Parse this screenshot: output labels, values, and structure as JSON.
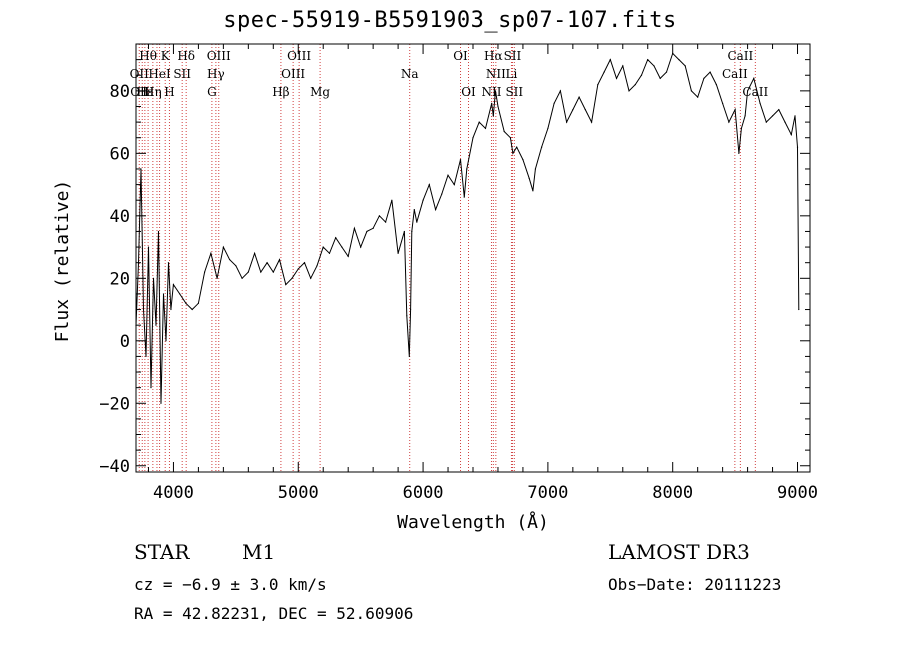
{
  "chart_data": {
    "type": "line",
    "title": "spec-55919-B5591903_sp07-107.fits",
    "xlabel": "Wavelength (Å)",
    "ylabel": "Flux (relative)",
    "xlim": [
      3700,
      9100
    ],
    "ylim": [
      -42,
      95
    ],
    "x_ticks": [
      4000,
      5000,
      6000,
      7000,
      8000,
      9000
    ],
    "y_ticks": [
      -40,
      -20,
      0,
      20,
      40,
      60,
      80
    ],
    "grid": false,
    "series": [
      {
        "x": [
          3700,
          3720,
          3740,
          3760,
          3780,
          3800,
          3820,
          3840,
          3860,
          3880,
          3900,
          3920,
          3940,
          3960,
          3980,
          4000,
          4050,
          4100,
          4150,
          4200,
          4250,
          4300,
          4350,
          4400,
          4450,
          4500,
          4550,
          4600,
          4650,
          4700,
          4750,
          4800,
          4850,
          4900,
          4950,
          5000,
          5050,
          5100,
          5150,
          5200,
          5250,
          5300,
          5350,
          5400,
          5450,
          5500,
          5550,
          5600,
          5650,
          5700,
          5750,
          5800,
          5850,
          5870,
          5890,
          5900,
          5910,
          5930,
          5950,
          6000,
          6050,
          6100,
          6150,
          6200,
          6250,
          6300,
          6330,
          6350,
          6400,
          6450,
          6500,
          6550,
          6563,
          6580,
          6600,
          6650,
          6700,
          6720,
          6750,
          6800,
          6850,
          6880,
          6900,
          6950,
          7000,
          7050,
          7100,
          7150,
          7200,
          7250,
          7300,
          7350,
          7400,
          7450,
          7500,
          7550,
          7600,
          7650,
          7700,
          7750,
          7800,
          7850,
          7900,
          7950,
          8000,
          8050,
          8100,
          8150,
          8200,
          8250,
          8300,
          8350,
          8400,
          8450,
          8500,
          8530,
          8550,
          8580,
          8600,
          8650,
          8700,
          8750,
          8800,
          8850,
          8900,
          8950,
          8980,
          9000,
          9010
        ],
        "y": [
          5,
          25,
          55,
          10,
          -5,
          30,
          -15,
          20,
          5,
          35,
          -20,
          15,
          0,
          25,
          10,
          18,
          15,
          12,
          10,
          12,
          22,
          28,
          20,
          30,
          26,
          24,
          20,
          22,
          28,
          22,
          25,
          22,
          26,
          18,
          20,
          23,
          25,
          20,
          24,
          30,
          28,
          33,
          30,
          27,
          36,
          30,
          35,
          36,
          40,
          38,
          45,
          28,
          35,
          8,
          -5,
          10,
          35,
          42,
          38,
          45,
          50,
          42,
          47,
          53,
          50,
          58,
          46,
          55,
          65,
          70,
          68,
          76,
          72,
          80,
          75,
          67,
          65,
          60,
          62,
          58,
          52,
          48,
          55,
          62,
          68,
          76,
          80,
          70,
          74,
          78,
          74,
          70,
          82,
          86,
          90,
          84,
          88,
          80,
          82,
          85,
          90,
          88,
          84,
          86,
          92,
          90,
          88,
          80,
          78,
          84,
          86,
          82,
          76,
          70,
          74,
          60,
          68,
          72,
          80,
          84,
          76,
          70,
          72,
          74,
          70,
          66,
          72,
          62,
          10
        ],
        "color": "#000000"
      }
    ],
    "lines": {
      "color": "#d04040",
      "positions": [
        3726,
        3750,
        3771,
        3797,
        3835,
        3868,
        3889,
        3934,
        3968,
        4102,
        4070,
        4308,
        4340,
        4363,
        4861,
        4959,
        5007,
        5175,
        5893,
        6300,
        6364,
        6548,
        6563,
        6583,
        6708,
        6716,
        6731,
        8498,
        8542,
        8662
      ]
    },
    "line_labels": [
      {
        "text": "Hθ",
        "x": 3797,
        "row": 1
      },
      {
        "text": "K",
        "x": 3934,
        "row": 1
      },
      {
        "text": "Hδ",
        "x": 4102,
        "row": 1
      },
      {
        "text": "OIII",
        "x": 4363,
        "row": 1
      },
      {
        "text": "OIII",
        "x": 5007,
        "row": 1
      },
      {
        "text": "OI",
        "x": 6300,
        "row": 1
      },
      {
        "text": "Hα",
        "x": 6563,
        "row": 1
      },
      {
        "text": "SII",
        "x": 6716,
        "row": 1
      },
      {
        "text": "CaII",
        "x": 8542,
        "row": 1
      },
      {
        "text": "OII",
        "x": 3726,
        "row": 2
      },
      {
        "text": "HeI",
        "x": 3889,
        "row": 2
      },
      {
        "text": "SII",
        "x": 4070,
        "row": 2
      },
      {
        "text": "Hγ",
        "x": 4340,
        "row": 2
      },
      {
        "text": "OIII",
        "x": 4959,
        "row": 2
      },
      {
        "text": "Na",
        "x": 5893,
        "row": 2
      },
      {
        "text": "NII",
        "x": 6583,
        "row": 2
      },
      {
        "text": "Li",
        "x": 6708,
        "row": 2
      },
      {
        "text": "CaII",
        "x": 8498,
        "row": 2
      },
      {
        "text": "OIII",
        "x": 3750,
        "row": 3
      },
      {
        "text": "Hε",
        "x": 3771,
        "row": 3
      },
      {
        "text": "Hη",
        "x": 3835,
        "row": 3
      },
      {
        "text": "H",
        "x": 3968,
        "row": 3
      },
      {
        "text": "G",
        "x": 4308,
        "row": 3
      },
      {
        "text": "Hβ",
        "x": 4861,
        "row": 3
      },
      {
        "text": "Mg",
        "x": 5175,
        "row": 3
      },
      {
        "text": "OI",
        "x": 6364,
        "row": 3
      },
      {
        "text": "NII",
        "x": 6548,
        "row": 3
      },
      {
        "text": "SII",
        "x": 6731,
        "row": 3
      },
      {
        "text": "CaII",
        "x": 8662,
        "row": 3
      }
    ]
  },
  "info": {
    "class": "STAR",
    "subclass": "M1",
    "survey": "LAMOST DR3",
    "cz": "cz = −6.9 ± 3.0 km/s",
    "obs_date": "Obs−Date: 20111223",
    "radec": "RA =  42.82231, DEC =  52.60906"
  }
}
